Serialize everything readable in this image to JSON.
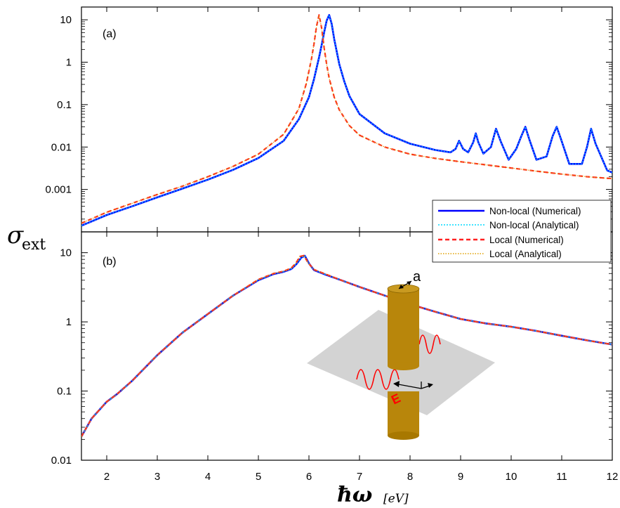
{
  "chart_data": {
    "type": "line",
    "x_label": "ħω",
    "x_unit": "[eV]",
    "y_label_main": "σ",
    "y_label_sub": "ext",
    "x_range": [
      1.5,
      12
    ],
    "x_ticks": [
      2,
      3,
      4,
      5,
      6,
      7,
      8,
      9,
      10,
      11,
      12
    ],
    "legend_position": "right, between panels",
    "legend": [
      {
        "label": "Non-local (Numerical)",
        "color": "#0000ff",
        "style": "solid"
      },
      {
        "label": "Non-local (Analytical)",
        "color": "#00d8ff",
        "style": "dotted"
      },
      {
        "label": "Local (Numerical)",
        "color": "#ff2020",
        "style": "dashed"
      },
      {
        "label": "Local (Analytical)",
        "color": "#e0a000",
        "style": "dotted"
      }
    ],
    "panels": [
      {
        "label": "(a)",
        "scale": "log",
        "y_range": [
          0.0001,
          20
        ],
        "y_ticks": [
          "0.001",
          "0.01",
          "0.1",
          "1",
          "10"
        ],
        "series": [
          {
            "name": "Non-local (Numerical)",
            "x": [
              1.5,
              2,
              2.5,
              3,
              3.5,
              4,
              4.5,
              5,
              5.5,
              5.8,
              6.0,
              6.1,
              6.2,
              6.25,
              6.3,
              6.35,
              6.4,
              6.45,
              6.5,
              6.6,
              6.7,
              6.8,
              7.0,
              7.5,
              8.0,
              8.5,
              8.8,
              8.9,
              8.97,
              9.05,
              9.15,
              9.25,
              9.3,
              9.35,
              9.45,
              9.6,
              9.7,
              9.8,
              9.95,
              10.1,
              10.2,
              10.28,
              10.36,
              10.5,
              10.7,
              10.82,
              10.9,
              10.98,
              11.15,
              11.4,
              11.5,
              11.58,
              11.67,
              11.9,
              12.0
            ],
            "y": [
              0.00014,
              0.00025,
              0.0004,
              0.00065,
              0.00105,
              0.0017,
              0.0029,
              0.0055,
              0.014,
              0.045,
              0.15,
              0.4,
              1.3,
              2.5,
              5.0,
              9.5,
              13.0,
              8.0,
              3.5,
              0.9,
              0.35,
              0.16,
              0.06,
              0.021,
              0.012,
              0.0085,
              0.0075,
              0.009,
              0.014,
              0.009,
              0.0075,
              0.013,
              0.021,
              0.013,
              0.007,
              0.01,
              0.027,
              0.013,
              0.005,
              0.009,
              0.018,
              0.03,
              0.015,
              0.005,
              0.006,
              0.018,
              0.03,
              0.016,
              0.004,
              0.004,
              0.01,
              0.027,
              0.012,
              0.0028,
              0.0025
            ]
          },
          {
            "name": "Non-local (Analytical)",
            "x": [
              1.5,
              2,
              2.5,
              3,
              3.5,
              4,
              4.5,
              5,
              5.5,
              5.8,
              6.0,
              6.1,
              6.2,
              6.25,
              6.3,
              6.35,
              6.4,
              6.45,
              6.5,
              6.6,
              6.7,
              6.8,
              7.0,
              7.5,
              8.0,
              8.5,
              8.8,
              8.9,
              8.97,
              9.05,
              9.15,
              9.25,
              9.3,
              9.35,
              9.45,
              9.6,
              9.7,
              9.8,
              9.95,
              10.1,
              10.2,
              10.28,
              10.36,
              10.5,
              10.7,
              10.82,
              10.9,
              10.98,
              11.15,
              11.4,
              11.5,
              11.58,
              11.67,
              11.9,
              12.0
            ],
            "y": [
              0.00014,
              0.00025,
              0.0004,
              0.00065,
              0.00105,
              0.0017,
              0.0029,
              0.0055,
              0.014,
              0.045,
              0.15,
              0.4,
              1.3,
              2.5,
              5.0,
              9.5,
              13.0,
              8.0,
              3.5,
              0.9,
              0.35,
              0.16,
              0.06,
              0.021,
              0.012,
              0.0085,
              0.0075,
              0.009,
              0.014,
              0.009,
              0.0075,
              0.013,
              0.021,
              0.013,
              0.007,
              0.01,
              0.027,
              0.013,
              0.005,
              0.009,
              0.018,
              0.03,
              0.015,
              0.005,
              0.006,
              0.018,
              0.03,
              0.016,
              0.004,
              0.004,
              0.01,
              0.027,
              0.012,
              0.0028,
              0.0025
            ]
          },
          {
            "name": "Local (Numerical)",
            "x": [
              1.5,
              2,
              2.5,
              3,
              3.5,
              4,
              4.5,
              5,
              5.5,
              5.8,
              5.95,
              6.05,
              6.1,
              6.15,
              6.2,
              6.25,
              6.3,
              6.35,
              6.4,
              6.5,
              6.6,
              6.8,
              7.0,
              7.5,
              8.0,
              8.5,
              9.0,
              9.5,
              10.0,
              10.5,
              11.0,
              11.5,
              12.0
            ],
            "y": [
              0.00016,
              0.00029,
              0.00047,
              0.00076,
              0.0012,
              0.002,
              0.0035,
              0.0068,
              0.02,
              0.08,
              0.32,
              1.2,
              2.7,
              7.0,
              13.0,
              6.5,
              2.2,
              0.9,
              0.42,
              0.15,
              0.075,
              0.032,
              0.019,
              0.01,
              0.0068,
              0.0054,
              0.0045,
              0.0038,
              0.0032,
              0.0027,
              0.0023,
              0.002,
              0.0018
            ]
          },
          {
            "name": "Local (Analytical)",
            "x": [
              1.5,
              2,
              2.5,
              3,
              3.5,
              4,
              4.5,
              5,
              5.5,
              5.8,
              5.95,
              6.05,
              6.1,
              6.15,
              6.2,
              6.25,
              6.3,
              6.35,
              6.4,
              6.5,
              6.6,
              6.8,
              7.0,
              7.5,
              8.0,
              8.5,
              9.0,
              9.5,
              10.0,
              10.5,
              11.0,
              11.5,
              12.0
            ],
            "y": [
              0.00016,
              0.00029,
              0.00047,
              0.00076,
              0.0012,
              0.002,
              0.0035,
              0.0068,
              0.02,
              0.08,
              0.32,
              1.2,
              2.7,
              7.0,
              13.0,
              6.5,
              2.2,
              0.9,
              0.42,
              0.15,
              0.075,
              0.032,
              0.019,
              0.01,
              0.0068,
              0.0054,
              0.0045,
              0.0038,
              0.0032,
              0.0027,
              0.0023,
              0.002,
              0.0018
            ]
          }
        ]
      },
      {
        "label": "(b)",
        "scale": "log",
        "y_range": [
          0.01,
          20
        ],
        "y_ticks": [
          "0.01",
          "0.1",
          "1",
          "10"
        ],
        "series": [
          {
            "name": "Non-local (Numerical)",
            "x": [
              1.5,
              1.7,
              2.0,
              2.2,
              2.5,
              3.0,
              3.5,
              4.0,
              4.5,
              5.0,
              5.3,
              5.5,
              5.65,
              5.75,
              5.85,
              5.92,
              6.0,
              6.1,
              6.3,
              6.6,
              7.0,
              7.5,
              8.0,
              8.5,
              9.0,
              9.5,
              10.0,
              10.5,
              11.0,
              11.5,
              12.0
            ],
            "y": [
              0.022,
              0.04,
              0.07,
              0.09,
              0.14,
              0.33,
              0.7,
              1.3,
              2.4,
              4.0,
              4.9,
              5.3,
              5.8,
              6.8,
              8.5,
              9.0,
              7.0,
              5.6,
              4.9,
              4.1,
              3.2,
              2.4,
              1.8,
              1.4,
              1.1,
              0.95,
              0.85,
              0.74,
              0.63,
              0.54,
              0.47
            ]
          },
          {
            "name": "Non-local (Analytical)",
            "x": [
              1.5,
              1.7,
              2.0,
              2.2,
              2.5,
              3.0,
              3.5,
              4.0,
              4.5,
              5.0,
              5.3,
              5.5,
              5.65,
              5.75,
              5.85,
              5.92,
              6.0,
              6.1,
              6.3,
              6.6,
              7.0,
              7.5,
              8.0,
              8.5,
              9.0,
              9.5,
              10.0,
              10.5,
              11.0,
              11.5,
              12.0
            ],
            "y": [
              0.022,
              0.04,
              0.07,
              0.09,
              0.14,
              0.33,
              0.7,
              1.3,
              2.4,
              4.0,
              4.9,
              5.3,
              5.8,
              6.8,
              8.5,
              9.0,
              7.0,
              5.6,
              4.9,
              4.1,
              3.2,
              2.4,
              1.8,
              1.4,
              1.1,
              0.95,
              0.85,
              0.74,
              0.63,
              0.54,
              0.47
            ]
          },
          {
            "name": "Local (Numerical)",
            "x": [
              1.5,
              1.7,
              2.0,
              2.2,
              2.5,
              3.0,
              3.5,
              4.0,
              4.5,
              5.0,
              5.3,
              5.5,
              5.65,
              5.75,
              5.82,
              5.9,
              5.98,
              6.1,
              6.3,
              6.6,
              7.0,
              7.5,
              8.0,
              8.5,
              9.0,
              9.5,
              10.0,
              10.5,
              11.0,
              11.5,
              12.0
            ],
            "y": [
              0.022,
              0.04,
              0.07,
              0.09,
              0.14,
              0.33,
              0.7,
              1.3,
              2.4,
              4.1,
              5.0,
              5.4,
              6.0,
              7.2,
              8.8,
              9.1,
              7.2,
              5.7,
              5.0,
              4.1,
              3.2,
              2.4,
              1.8,
              1.4,
              1.1,
              0.95,
              0.85,
              0.74,
              0.63,
              0.54,
              0.47
            ]
          },
          {
            "name": "Local (Analytical)",
            "x": [
              1.5,
              1.7,
              2.0,
              2.2,
              2.5,
              3.0,
              3.5,
              4.0,
              4.5,
              5.0,
              5.3,
              5.5,
              5.65,
              5.75,
              5.82,
              5.9,
              5.98,
              6.1,
              6.3,
              6.6,
              7.0,
              7.5,
              8.0,
              8.5,
              9.0,
              9.5,
              10.0,
              10.5,
              11.0,
              11.5,
              12.0
            ],
            "y": [
              0.022,
              0.04,
              0.07,
              0.09,
              0.14,
              0.33,
              0.7,
              1.3,
              2.4,
              4.1,
              5.0,
              5.4,
              6.0,
              7.2,
              8.8,
              9.1,
              7.2,
              5.7,
              5.0,
              4.1,
              3.2,
              2.4,
              1.8,
              1.4,
              1.1,
              0.95,
              0.85,
              0.74,
              0.63,
              0.54,
              0.47
            ]
          }
        ]
      }
    ],
    "inset": {
      "radius_label": "a",
      "field_label": "E",
      "cylinder_color": "#b8860b",
      "plane_color": "#d3d3d3",
      "wave_color": "#ff0000"
    }
  }
}
